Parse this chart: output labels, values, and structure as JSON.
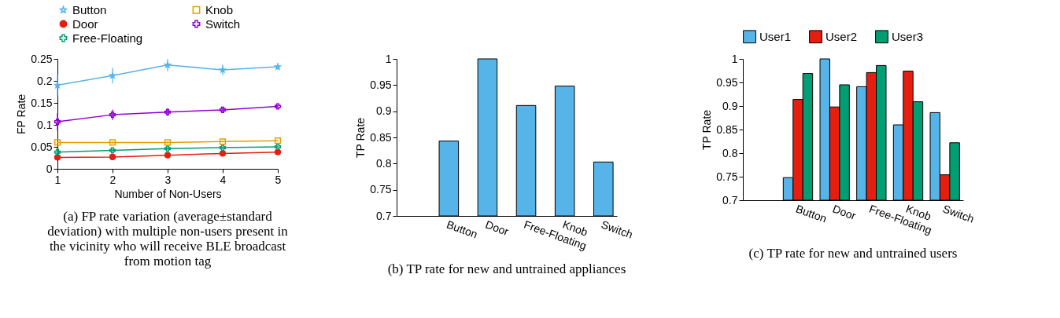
{
  "chart_data": [
    {
      "type": "line",
      "title": "(a) FP rate variation (average±standard deviation) with multiple non-users present in the vicinity who will receive BLE broadcast from motion tag",
      "xlabel": "Number of Non-Users",
      "ylabel": "FP Rate",
      "x": [
        1,
        2,
        3,
        4,
        5
      ],
      "xlim": [
        1,
        5
      ],
      "xticks": [
        1,
        2,
        3,
        4,
        5
      ],
      "ylim": [
        0,
        0.25
      ],
      "yticks": [
        0,
        0.05,
        0.1,
        0.15,
        0.2,
        0.25
      ],
      "legend": "top",
      "grid": false,
      "series": [
        {
          "name": "Button",
          "color": "#56b4e9",
          "marker": "star",
          "values": [
            0.19,
            0.212,
            0.236,
            0.225,
            0.232
          ],
          "errors": [
            0.025,
            0.018,
            0.014,
            0.012,
            0.008
          ]
        },
        {
          "name": "Door",
          "color": "#e51e10",
          "marker": "circle",
          "values": [
            0.026,
            0.027,
            0.031,
            0.035,
            0.038
          ],
          "errors": [
            0.002,
            0.002,
            0.002,
            0.002,
            0.002
          ]
        },
        {
          "name": "Free-Floating",
          "color": "#009e73",
          "marker": "cross",
          "values": [
            0.038,
            0.042,
            0.046,
            0.048,
            0.05
          ],
          "errors": [
            0.002,
            0.002,
            0.002,
            0.002,
            0.002
          ]
        },
        {
          "name": "Knob",
          "color": "#e69f00",
          "marker": "square",
          "values": [
            0.06,
            0.06,
            0.06,
            0.062,
            0.064
          ],
          "errors": [
            0.002,
            0.002,
            0.002,
            0.002,
            0.002
          ]
        },
        {
          "name": "Switch",
          "color": "#9400d3",
          "marker": "cross",
          "values": [
            0.107,
            0.123,
            0.129,
            0.134,
            0.142
          ],
          "errors": [
            0.02,
            0.012,
            0.009,
            0.005,
            0.003
          ]
        }
      ]
    },
    {
      "type": "bar",
      "title": "(b) TP rate for new and untrained appliances",
      "ylabel": "TP Rate",
      "categories": [
        null,
        "Button",
        "Door",
        "Free-Floating",
        "Knob",
        "Switch"
      ],
      "values": [
        null,
        0.843,
        1.0,
        0.911,
        0.948,
        0.803
      ],
      "color": "#56b4e9",
      "ylim": [
        0.7,
        1
      ],
      "yticks": [
        0.7,
        0.75,
        0.8,
        0.85,
        0.9,
        0.95,
        1
      ],
      "grid": false
    },
    {
      "type": "bar",
      "title": "(c) TP rate for new and untrained users",
      "ylabel": "TP Rate",
      "categories": [
        null,
        "Button",
        "Door",
        "Free-Floating",
        "Knob",
        "Switch"
      ],
      "ylim": [
        0.7,
        1
      ],
      "yticks": [
        0.7,
        0.75,
        0.8,
        0.85,
        0.9,
        0.95,
        1
      ],
      "legend": "top",
      "grid": false,
      "series": [
        {
          "name": "User1",
          "color": "#56b4e9",
          "values": [
            null,
            0.748,
            1.0,
            0.941,
            0.86,
            0.886
          ]
        },
        {
          "name": "User2",
          "color": "#e51e10",
          "values": [
            null,
            0.914,
            0.898,
            0.971,
            0.974,
            0.754
          ]
        },
        {
          "name": "User3",
          "color": "#009e73",
          "values": [
            null,
            0.969,
            0.945,
            0.986,
            0.909,
            0.822
          ]
        }
      ]
    }
  ]
}
